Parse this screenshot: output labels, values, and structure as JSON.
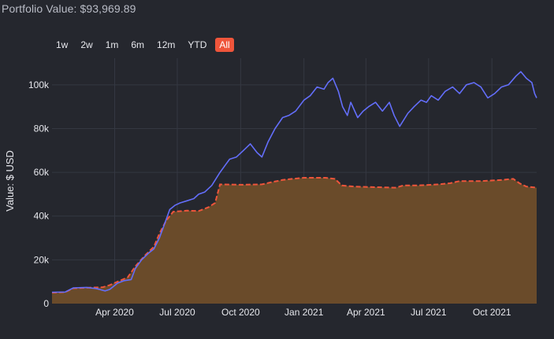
{
  "header": {
    "title": "Portfolio Value: $93,969.89"
  },
  "range_selector": {
    "buttons": [
      {
        "label": "1w",
        "active": false
      },
      {
        "label": "2w",
        "active": false
      },
      {
        "label": "1m",
        "active": false
      },
      {
        "label": "6m",
        "active": false
      },
      {
        "label": "12m",
        "active": false
      },
      {
        "label": "YTD",
        "active": false
      },
      {
        "label": "All",
        "active": true
      }
    ]
  },
  "colors": {
    "background": "#25272e",
    "grid": "#353842",
    "value_line": "#636efa",
    "cost_line": "#ef553b",
    "cost_fill": "#6a4b2a",
    "active_button": "#ef553b"
  },
  "chart_data": {
    "type": "area",
    "ylabel": "Value: $ USD",
    "xlim": [
      "2020-01-01",
      "2021-12-05"
    ],
    "ylim": [
      0,
      110000
    ],
    "grid": true,
    "x_ticks": [
      {
        "label": "Apr 2020",
        "date": "2020-04-01"
      },
      {
        "label": "Jul 2020",
        "date": "2020-07-01"
      },
      {
        "label": "Oct 2020",
        "date": "2020-10-01"
      },
      {
        "label": "Jan 2021",
        "date": "2021-01-01"
      },
      {
        "label": "Apr 2021",
        "date": "2021-04-01"
      },
      {
        "label": "Jul 2021",
        "date": "2021-07-01"
      },
      {
        "label": "Oct 2021",
        "date": "2021-10-01"
      }
    ],
    "y_ticks": [
      {
        "label": "0",
        "value": 0
      },
      {
        "label": "20k",
        "value": 20000
      },
      {
        "label": "40k",
        "value": 40000
      },
      {
        "label": "60k",
        "value": 60000
      },
      {
        "label": "80k",
        "value": 80000
      },
      {
        "label": "100k",
        "value": 100000
      }
    ],
    "series": [
      {
        "style": "line",
        "color": "#636efa",
        "points": [
          [
            "2020-01-01",
            5200
          ],
          [
            "2020-01-20",
            5300
          ],
          [
            "2020-02-01",
            7200
          ],
          [
            "2020-02-20",
            7400
          ],
          [
            "2020-03-05",
            6900
          ],
          [
            "2020-03-18",
            5800
          ],
          [
            "2020-03-25",
            6500
          ],
          [
            "2020-04-05",
            9300
          ],
          [
            "2020-04-15",
            10500
          ],
          [
            "2020-04-25",
            11000
          ],
          [
            "2020-05-01",
            16000
          ],
          [
            "2020-05-10",
            20000
          ],
          [
            "2020-05-20",
            23000
          ],
          [
            "2020-05-28",
            25000
          ],
          [
            "2020-06-05",
            30000
          ],
          [
            "2020-06-12",
            36000
          ],
          [
            "2020-06-20",
            43000
          ],
          [
            "2020-06-28",
            45000
          ],
          [
            "2020-07-05",
            46000
          ],
          [
            "2020-07-15",
            47000
          ],
          [
            "2020-07-25",
            48000
          ],
          [
            "2020-08-01",
            50000
          ],
          [
            "2020-08-10",
            51000
          ],
          [
            "2020-08-20",
            54000
          ],
          [
            "2020-09-01",
            60000
          ],
          [
            "2020-09-08",
            63000
          ],
          [
            "2020-09-15",
            66000
          ],
          [
            "2020-09-25",
            67000
          ],
          [
            "2020-10-05",
            70000
          ],
          [
            "2020-10-15",
            73000
          ],
          [
            "2020-10-25",
            69000
          ],
          [
            "2020-11-01",
            67000
          ],
          [
            "2020-11-10",
            74000
          ],
          [
            "2020-11-20",
            80000
          ],
          [
            "2020-12-01",
            85000
          ],
          [
            "2020-12-10",
            86000
          ],
          [
            "2020-12-20",
            88000
          ],
          [
            "2021-01-01",
            93000
          ],
          [
            "2021-01-10",
            95000
          ],
          [
            "2021-01-20",
            99000
          ],
          [
            "2021-01-30",
            98000
          ],
          [
            "2021-02-05",
            101000
          ],
          [
            "2021-02-12",
            103000
          ],
          [
            "2021-02-20",
            97000
          ],
          [
            "2021-02-26",
            90000
          ],
          [
            "2021-03-05",
            86000
          ],
          [
            "2021-03-10",
            92000
          ],
          [
            "2021-03-20",
            85000
          ],
          [
            "2021-03-28",
            88000
          ],
          [
            "2021-04-05",
            90000
          ],
          [
            "2021-04-15",
            92000
          ],
          [
            "2021-04-25",
            88000
          ],
          [
            "2021-05-05",
            92000
          ],
          [
            "2021-05-12",
            86000
          ],
          [
            "2021-05-20",
            81000
          ],
          [
            "2021-06-01",
            87000
          ],
          [
            "2021-06-10",
            90000
          ],
          [
            "2021-06-20",
            93000
          ],
          [
            "2021-06-28",
            92000
          ],
          [
            "2021-07-05",
            95000
          ],
          [
            "2021-07-15",
            93000
          ],
          [
            "2021-07-25",
            97000
          ],
          [
            "2021-08-05",
            99000
          ],
          [
            "2021-08-15",
            96000
          ],
          [
            "2021-08-25",
            100000
          ],
          [
            "2021-09-05",
            101000
          ],
          [
            "2021-09-15",
            99000
          ],
          [
            "2021-09-25",
            94000
          ],
          [
            "2021-10-05",
            96000
          ],
          [
            "2021-10-15",
            99000
          ],
          [
            "2021-10-25",
            100000
          ],
          [
            "2021-11-05",
            104000
          ],
          [
            "2021-11-12",
            106000
          ],
          [
            "2021-11-20",
            103000
          ],
          [
            "2021-11-28",
            101000
          ],
          [
            "2021-12-02",
            96000
          ],
          [
            "2021-12-05",
            94000
          ]
        ]
      },
      {
        "style": "dashed-area",
        "color": "#ef553b",
        "fill": "#6a4b2a",
        "points": [
          [
            "2020-01-01",
            5000
          ],
          [
            "2020-01-20",
            5200
          ],
          [
            "2020-02-01",
            7000
          ],
          [
            "2020-03-15",
            7500
          ],
          [
            "2020-03-25",
            8500
          ],
          [
            "2020-04-05",
            10000
          ],
          [
            "2020-04-20",
            12000
          ],
          [
            "2020-05-01",
            17000
          ],
          [
            "2020-05-15",
            22000
          ],
          [
            "2020-05-28",
            26000
          ],
          [
            "2020-06-05",
            32000
          ],
          [
            "2020-06-15",
            38000
          ],
          [
            "2020-06-25",
            42000
          ],
          [
            "2020-07-15",
            42500
          ],
          [
            "2020-08-01",
            42300
          ],
          [
            "2020-08-15",
            44000
          ],
          [
            "2020-08-25",
            46000
          ],
          [
            "2020-09-01",
            54500
          ],
          [
            "2020-10-01",
            54300
          ],
          [
            "2020-11-01",
            54500
          ],
          [
            "2020-11-15",
            55500
          ],
          [
            "2020-12-01",
            56500
          ],
          [
            "2020-12-15",
            57000
          ],
          [
            "2021-01-01",
            57500
          ],
          [
            "2021-02-01",
            57500
          ],
          [
            "2021-02-15",
            57000
          ],
          [
            "2021-02-25",
            54000
          ],
          [
            "2021-03-15",
            53500
          ],
          [
            "2021-04-15",
            53200
          ],
          [
            "2021-05-15",
            53000
          ],
          [
            "2021-05-25",
            54000
          ],
          [
            "2021-06-15",
            54000
          ],
          [
            "2021-07-15",
            54500
          ],
          [
            "2021-08-01",
            55000
          ],
          [
            "2021-08-15",
            56000
          ],
          [
            "2021-09-15",
            56000
          ],
          [
            "2021-10-15",
            56500
          ],
          [
            "2021-11-01",
            57000
          ],
          [
            "2021-11-10",
            55000
          ],
          [
            "2021-11-20",
            53500
          ],
          [
            "2021-12-05",
            53000
          ]
        ]
      }
    ]
  }
}
